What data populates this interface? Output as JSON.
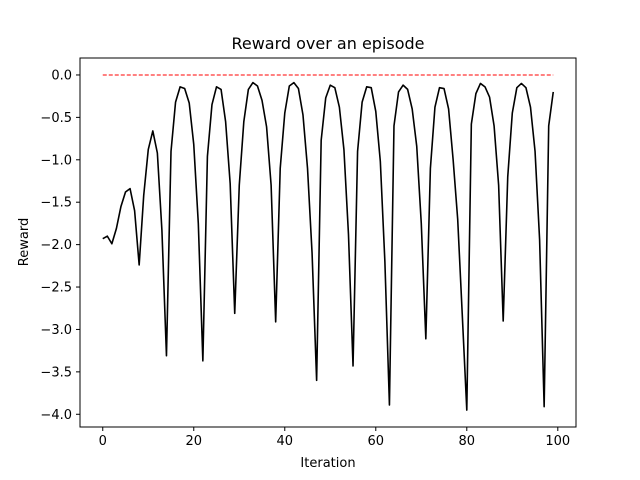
{
  "chart_data": {
    "type": "line",
    "title": "Reward over an episode",
    "xlabel": "Iteration",
    "ylabel": "Reward",
    "xlim": [
      -5,
      104
    ],
    "ylim": [
      -4.15,
      0.2
    ],
    "grid": false,
    "xticks": [
      0,
      20,
      40,
      60,
      80,
      100
    ],
    "xtick_labels": [
      "0",
      "20",
      "40",
      "60",
      "80",
      "100"
    ],
    "yticks": [
      0.0,
      -0.5,
      -1.0,
      -1.5,
      -2.0,
      -2.5,
      -3.0,
      -3.5,
      -4.0
    ],
    "ytick_labels": [
      "0.0",
      "−0.5",
      "−1.0",
      "−1.5",
      "−2.0",
      "−2.5",
      "−3.0",
      "−3.5",
      "−4.0"
    ],
    "series": [
      {
        "color": "#000000",
        "style": "solid",
        "x": [
          0,
          1,
          2,
          3,
          4,
          5,
          6,
          7,
          8,
          9,
          10,
          11,
          12,
          13,
          14,
          15,
          16,
          17,
          18,
          19,
          20,
          21,
          22,
          23,
          24,
          25,
          26,
          27,
          28,
          29,
          30,
          31,
          32,
          33,
          34,
          35,
          36,
          37,
          38,
          39,
          40,
          41,
          42,
          43,
          44,
          45,
          46,
          47,
          48,
          49,
          50,
          51,
          52,
          53,
          54,
          55,
          56,
          57,
          58,
          59,
          60,
          61,
          62,
          63,
          64,
          65,
          66,
          67,
          68,
          69,
          70,
          71,
          72,
          73,
          74,
          75,
          76,
          77,
          78,
          79,
          80,
          81,
          82,
          83,
          84,
          85,
          86,
          87,
          88,
          89,
          90,
          91,
          92,
          93,
          94,
          95,
          96,
          97,
          98,
          99
        ],
        "y": [
          -1.93,
          -1.9,
          -1.99,
          -1.81,
          -1.55,
          -1.38,
          -1.34,
          -1.6,
          -2.24,
          -1.42,
          -0.88,
          -0.66,
          -0.92,
          -1.83,
          -3.31,
          -0.9,
          -0.32,
          -0.14,
          -0.16,
          -0.33,
          -0.82,
          -1.75,
          -3.37,
          -0.96,
          -0.35,
          -0.14,
          -0.17,
          -0.55,
          -1.28,
          -2.81,
          -1.3,
          -0.55,
          -0.17,
          -0.09,
          -0.13,
          -0.3,
          -0.61,
          -1.3,
          -2.91,
          -1.1,
          -0.45,
          -0.13,
          -0.09,
          -0.16,
          -0.47,
          -1.1,
          -2.1,
          -3.6,
          -0.77,
          -0.27,
          -0.12,
          -0.15,
          -0.38,
          -0.88,
          -1.88,
          -3.43,
          -0.9,
          -0.32,
          -0.14,
          -0.15,
          -0.43,
          -1.02,
          -2.2,
          -3.89,
          -0.6,
          -0.2,
          -0.12,
          -0.17,
          -0.4,
          -0.84,
          -1.75,
          -3.11,
          -1.1,
          -0.38,
          -0.15,
          -0.16,
          -0.4,
          -1.0,
          -1.7,
          -2.82,
          -3.95,
          -0.58,
          -0.22,
          -0.1,
          -0.14,
          -0.26,
          -0.6,
          -1.3,
          -2.9,
          -1.2,
          -0.45,
          -0.15,
          -0.1,
          -0.15,
          -0.38,
          -0.9,
          -1.94,
          -3.91,
          -0.6,
          -0.2
        ]
      },
      {
        "color": "#ff0000",
        "style": "dashed",
        "x": [
          0,
          99
        ],
        "y": [
          0.0,
          0.0
        ]
      }
    ]
  }
}
